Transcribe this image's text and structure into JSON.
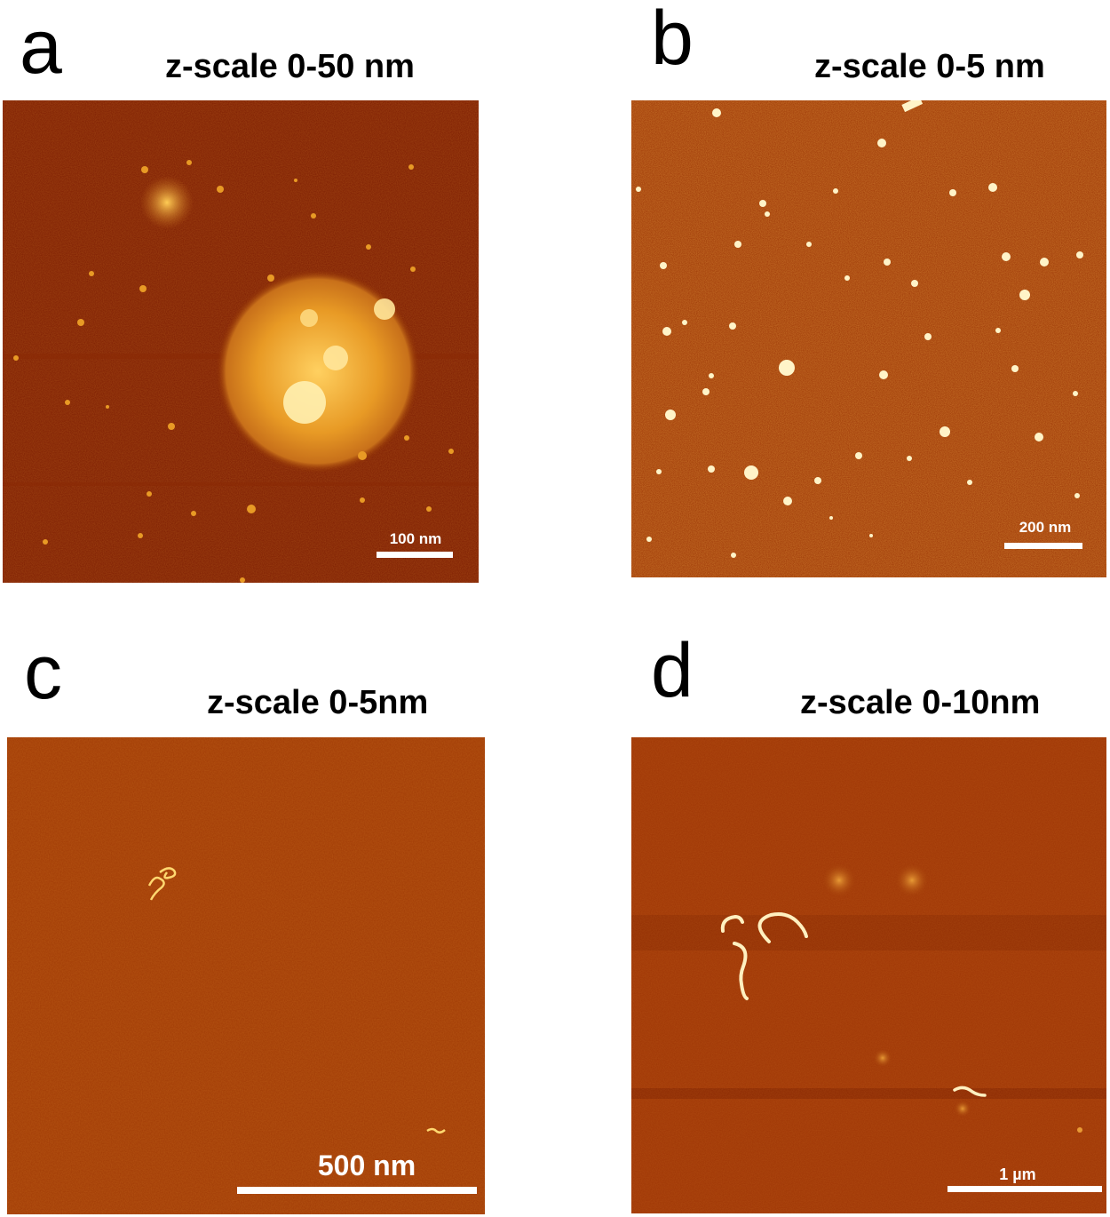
{
  "panels": [
    {
      "letter": "a",
      "zscale": "z-scale 0-50 nm",
      "scalebar": "100 nm"
    },
    {
      "letter": "b",
      "zscale": "z-scale 0-5 nm",
      "scalebar": "200 nm"
    },
    {
      "letter": "c",
      "zscale": "z-scale 0-5nm",
      "scalebar": "500 nm"
    },
    {
      "letter": "d",
      "zscale": "z-scale 0-10nm",
      "scalebar": "1 µm"
    }
  ],
  "colors": {
    "background_dark": "#7a1a00",
    "surface": "#9a3000",
    "feature": "#f0a020",
    "feature_bright": "#fff2b0"
  }
}
